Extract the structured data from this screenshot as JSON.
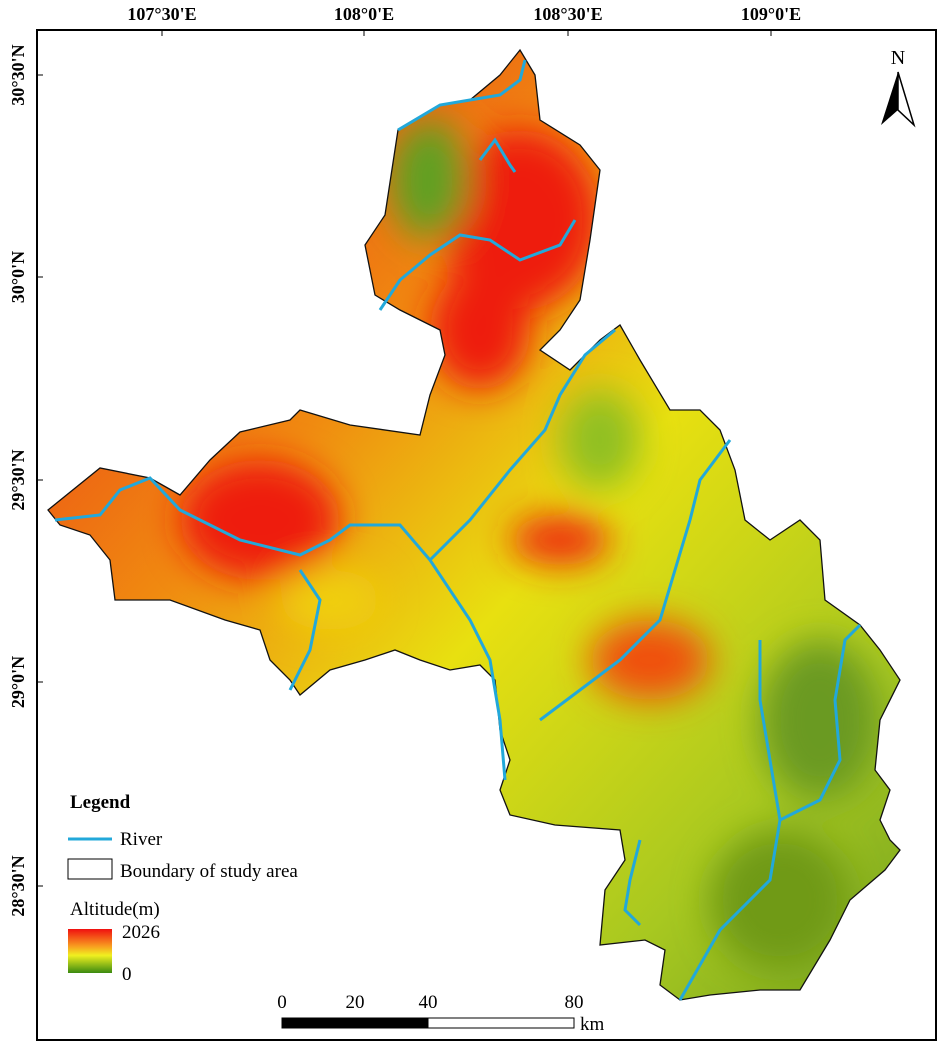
{
  "map": {
    "north_label": "N",
    "lon_labels": [
      "107°30'E",
      "108°0'E",
      "108°30'E",
      "109°0'E"
    ],
    "lat_labels": [
      "30°30'N",
      "30°0'N",
      "29°30'N",
      "29°0'N",
      "28°30'N"
    ],
    "legend": {
      "title": "Legend",
      "items": [
        "River",
        "Boundary of study area"
      ],
      "altitude_title": "Altitude(m)",
      "altitude_max": 2026,
      "altitude_min": 0
    },
    "scale_bar": {
      "labels": [
        0,
        20,
        40,
        80
      ],
      "unit": "km"
    }
  }
}
